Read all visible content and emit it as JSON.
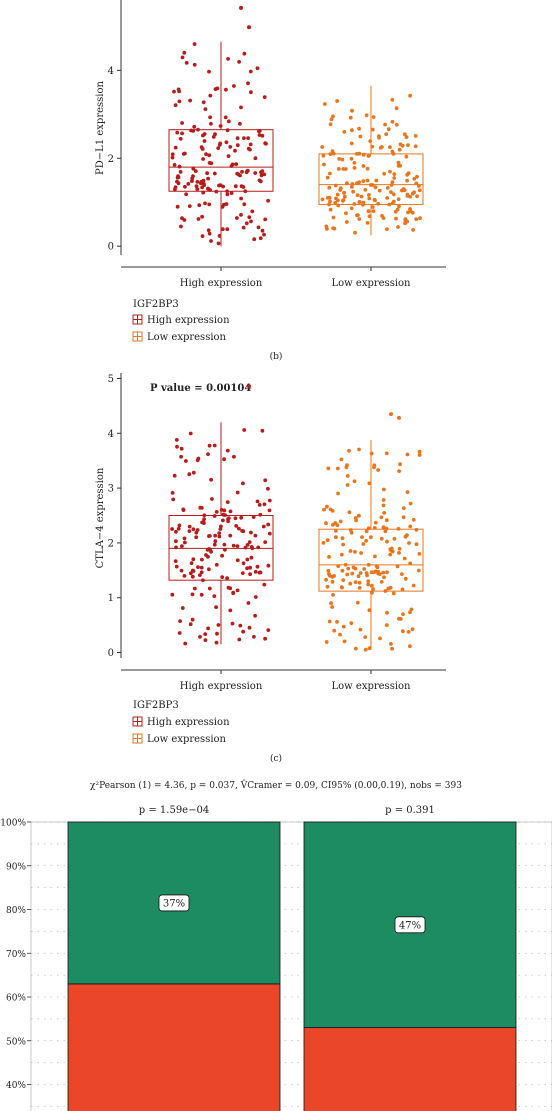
{
  "chart_data": [
    {
      "type": "box",
      "ylabel": "PD−L1 expression",
      "ylim": [
        -0.2,
        5.6
      ],
      "yticks": [
        0,
        2,
        4
      ],
      "categories": [
        "High expression",
        "Low expression"
      ],
      "colors": [
        "#b71c1c",
        "#e8761e"
      ],
      "boxes": [
        {
          "category": "High expression",
          "q1": 1.25,
          "median": 1.8,
          "q3": 2.65,
          "whisker_low": 0.0,
          "whisker_high": 4.65,
          "outliers": [
            4.98,
            5.42
          ]
        },
        {
          "category": "Low expression",
          "q1": 0.95,
          "median": 1.4,
          "q3": 2.1,
          "whisker_low": 0.25,
          "whisker_high": 3.65,
          "outliers": []
        }
      ],
      "legend": {
        "title": "IGF2BP3",
        "items": [
          "High expression",
          "Low expression"
        ]
      },
      "panel_label": "(b)"
    },
    {
      "type": "box",
      "annotation": "P value = 0.00104",
      "ylabel": "CTLA−4 expression",
      "ylim": [
        -0.1,
        5.1
      ],
      "yticks": [
        0,
        1,
        2,
        3,
        4,
        5
      ],
      "categories": [
        "High expression",
        "Low expression"
      ],
      "colors": [
        "#b71c1c",
        "#e8761e"
      ],
      "boxes": [
        {
          "category": "High expression",
          "q1": 1.32,
          "median": 1.9,
          "q3": 2.5,
          "whisker_low": 0.15,
          "whisker_high": 4.2,
          "outliers": [
            4.86
          ]
        },
        {
          "category": "Low expression",
          "q1": 1.12,
          "median": 1.6,
          "q3": 2.25,
          "whisker_low": 0.05,
          "whisker_high": 3.88,
          "outliers": [
            4.28,
            4.35
          ]
        }
      ],
      "legend": {
        "title": "IGF2BP3",
        "items": [
          "High expression",
          "Low expression"
        ]
      },
      "panel_label": "(c)"
    },
    {
      "type": "bar",
      "stacked": true,
      "subtitle": "χ²Pearson (1) = 4.36, p = 0.037, V̂Cramer = 0.09, CI95% (0.00,0.19), nobs = 393",
      "ylim": [
        0,
        100
      ],
      "ytick_labels": [
        "100%",
        "90%",
        "80%",
        "70%",
        "60%",
        "50%",
        "40%"
      ],
      "bars": [
        {
          "pvalue": "p = 1.59e−04",
          "top_segment_pct": 37,
          "top_label": "37%"
        },
        {
          "pvalue": "p = 0.391",
          "top_segment_pct": 47,
          "top_label": "47%"
        }
      ],
      "segment_colors": [
        "#1e8c63",
        "#e9462a"
      ]
    }
  ]
}
